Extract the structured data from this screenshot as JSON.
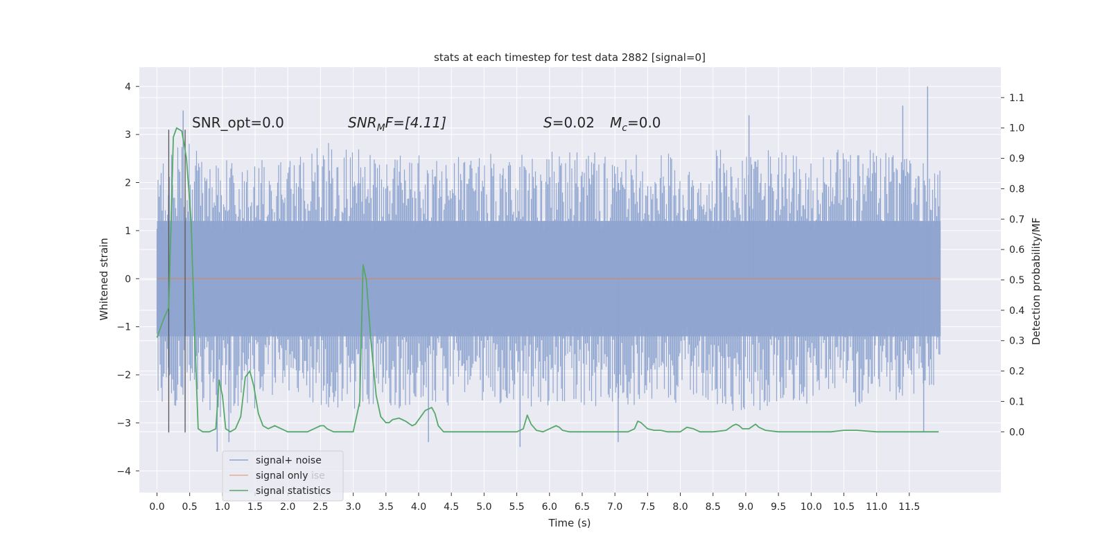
{
  "chart_data": {
    "type": "line",
    "title": "stats at each timestep for test data 2882 [signal=0]",
    "xlabel": "Time (s)",
    "ylabel": "Whitened strain",
    "ylabel_right": "Detection probability/MF",
    "xlim": [
      -0.27,
      12.9
    ],
    "ylim": [
      -4.45,
      4.4
    ],
    "ylim_right": [
      -0.2,
      1.2
    ],
    "x_ticks": [
      0.0,
      0.5,
      1.0,
      1.5,
      2.0,
      2.5,
      3.0,
      3.5,
      4.0,
      4.5,
      5.0,
      5.5,
      6.0,
      6.5,
      7.0,
      7.5,
      8.0,
      8.5,
      9.0,
      9.5,
      10.0,
      10.5,
      11.0,
      11.5
    ],
    "x_tick_labels": [
      "0.0",
      "0.5",
      "1.0",
      "1.5",
      "2.0",
      "2.5",
      "3.0",
      "3.5",
      "4.0",
      "4.5",
      "5.0",
      "5.5",
      "6.0",
      "6.5",
      "7.0",
      "7.5",
      "8.0",
      "8.5",
      "9.0",
      "9.5",
      "10.0",
      "10.5",
      "11.0",
      "11.5"
    ],
    "y_ticks": [
      4,
      3,
      2,
      1,
      0,
      -1,
      -2,
      -3,
      -4
    ],
    "y_tick_labels": [
      "4",
      "3",
      "2",
      "1",
      "0",
      "−1",
      "−2",
      "−3",
      "−4"
    ],
    "y_right_ticks": [
      1.1,
      1.0,
      0.9,
      0.8,
      0.7,
      0.6,
      0.5,
      0.4,
      0.3,
      0.2,
      0.1,
      0.0
    ],
    "y_right_tick_labels": [
      "1.1",
      "1.0",
      "0.9",
      "0.8",
      "0.7",
      "0.6",
      "0.5",
      "0.4",
      "0.3",
      "0.2",
      "0.1",
      "0.0"
    ],
    "grid": true,
    "legend_position": "lower-left",
    "colors": {
      "plot_bg": "#eaeaf2",
      "grid": "#ffffff",
      "noise": "#8fa5cf",
      "signal_only": "#dd8452",
      "statistics": "#55a868",
      "vline": "#555555"
    },
    "series": [
      {
        "name": "signal+ noise",
        "axis": "left",
        "style": "noise-band",
        "x_start": 0.0,
        "x_end": 11.98,
        "envelope_upper": [
          [
            0.0,
            2.6
          ],
          [
            0.5,
            2.9
          ],
          [
            1.0,
            2.6
          ],
          [
            2.0,
            2.5
          ],
          [
            2.5,
            2.9
          ],
          [
            3.0,
            2.7
          ],
          [
            4.0,
            2.6
          ],
          [
            5.0,
            2.6
          ],
          [
            6.0,
            2.7
          ],
          [
            7.0,
            2.6
          ],
          [
            8.0,
            2.6
          ],
          [
            9.0,
            2.8
          ],
          [
            10.0,
            2.6
          ],
          [
            11.0,
            2.8
          ],
          [
            11.98,
            2.3
          ]
        ],
        "envelope_lower": [
          [
            0.0,
            -2.6
          ],
          [
            1.0,
            -2.9
          ],
          [
            2.0,
            -2.5
          ],
          [
            3.0,
            -2.8
          ],
          [
            4.0,
            -2.7
          ],
          [
            5.0,
            -2.6
          ],
          [
            6.0,
            -2.7
          ],
          [
            7.0,
            -2.7
          ],
          [
            8.0,
            -2.6
          ],
          [
            9.0,
            -2.8
          ],
          [
            10.0,
            -2.6
          ],
          [
            11.0,
            -2.7
          ],
          [
            11.98,
            -2.3
          ]
        ],
        "peaks": [
          [
            0.4,
            3.5
          ],
          [
            0.92,
            -3.6
          ],
          [
            1.1,
            -3.4
          ],
          [
            4.15,
            -3.4
          ],
          [
            5.55,
            -3.5
          ],
          [
            7.05,
            -3.4
          ],
          [
            11.78,
            4.0
          ],
          [
            11.72,
            -3.2
          ],
          [
            11.4,
            3.6
          ],
          [
            9.05,
            3.4
          ]
        ]
      },
      {
        "name": "signal only",
        "axis": "left",
        "x": [
          0.0,
          11.98
        ],
        "y": [
          0.0,
          0.0
        ]
      },
      {
        "name": "signal statistics",
        "axis": "right",
        "x": [
          0.0,
          0.1,
          0.18,
          0.25,
          0.3,
          0.38,
          0.45,
          0.52,
          0.58,
          0.63,
          0.7,
          0.8,
          0.9,
          0.95,
          1.0,
          1.05,
          1.12,
          1.2,
          1.28,
          1.35,
          1.42,
          1.48,
          1.55,
          1.62,
          1.7,
          1.8,
          1.9,
          2.0,
          2.1,
          2.2,
          2.3,
          2.4,
          2.5,
          2.55,
          2.6,
          2.7,
          2.8,
          2.9,
          3.0,
          3.1,
          3.15,
          3.2,
          3.27,
          3.35,
          3.42,
          3.5,
          3.55,
          3.6,
          3.7,
          3.8,
          3.9,
          3.95,
          4.0,
          4.1,
          4.2,
          4.25,
          4.3,
          4.38,
          4.45,
          4.5,
          4.7,
          5.0,
          5.3,
          5.5,
          5.6,
          5.66,
          5.72,
          5.8,
          5.9,
          6.0,
          6.1,
          6.15,
          6.2,
          6.3,
          6.5,
          6.8,
          7.0,
          7.2,
          7.3,
          7.35,
          7.4,
          7.5,
          7.6,
          7.7,
          7.8,
          8.0,
          8.1,
          8.2,
          8.3,
          8.5,
          8.7,
          8.8,
          8.85,
          8.9,
          8.95,
          9.05,
          9.15,
          9.2,
          9.3,
          9.5,
          10.0,
          10.3,
          10.5,
          10.7,
          11.0,
          11.5,
          11.95
        ],
        "y": [
          0.31,
          0.37,
          0.41,
          0.97,
          1.0,
          0.99,
          0.9,
          0.7,
          0.3,
          0.01,
          0.0,
          0.0,
          0.01,
          0.17,
          0.12,
          0.01,
          0.0,
          0.01,
          0.05,
          0.18,
          0.2,
          0.15,
          0.06,
          0.02,
          0.01,
          0.02,
          0.01,
          0.0,
          0.0,
          0.0,
          0.0,
          0.01,
          0.02,
          0.02,
          0.01,
          0.0,
          0.0,
          0.0,
          0.0,
          0.1,
          0.55,
          0.5,
          0.3,
          0.12,
          0.05,
          0.03,
          0.03,
          0.04,
          0.045,
          0.035,
          0.02,
          0.025,
          0.04,
          0.07,
          0.08,
          0.06,
          0.02,
          0.0,
          0.0,
          0.0,
          0.0,
          0.0,
          0.0,
          0.0,
          0.01,
          0.055,
          0.025,
          0.005,
          0.0,
          0.01,
          0.02,
          0.015,
          0.005,
          0.0,
          0.0,
          0.0,
          0.0,
          0.0,
          0.01,
          0.035,
          0.03,
          0.01,
          0.005,
          0.005,
          0.0,
          0.0,
          0.015,
          0.01,
          0.0,
          0.0,
          0.005,
          0.02,
          0.025,
          0.02,
          0.01,
          0.01,
          0.025,
          0.015,
          0.005,
          0.0,
          0.0,
          0.0,
          0.005,
          0.005,
          0.0,
          0.0,
          0.0
        ]
      }
    ],
    "vlines": [
      0.18,
      0.43
    ],
    "vline_span": [
      -3.2,
      3.1
    ],
    "annotations": {
      "snr_opt": "SNR_opt=0.0",
      "snr_mf_main": "SNR",
      "snr_mf_sub": "M",
      "snr_mf_rest": "F=[4.11]",
      "s_symbol": "S",
      "s_value": "=0.02",
      "mc_symbol": "M",
      "mc_sub": "c",
      "mc_value": "=0.0"
    },
    "legend": {
      "items": [
        "signal+ noise",
        "signal only",
        "signal statistics"
      ],
      "overlap_text": "ise"
    }
  }
}
